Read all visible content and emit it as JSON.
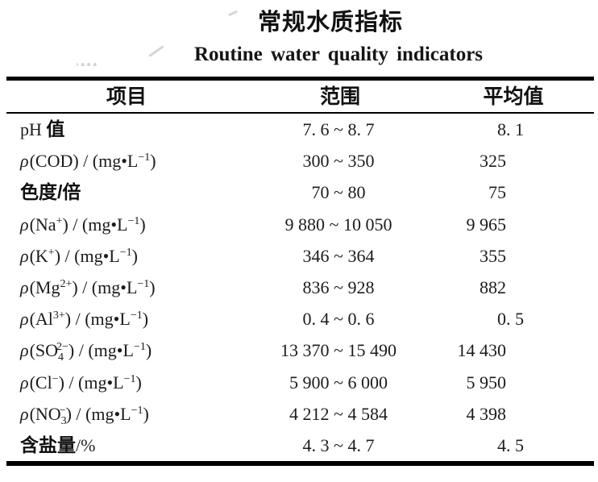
{
  "page": {
    "title_zh": "常规水质指标",
    "title_en": "Routine water quality indicators"
  },
  "table": {
    "columns": [
      "项目",
      "范围",
      "平均值"
    ],
    "rows": [
      {
        "item": "pH 值",
        "item_segments": [
          {
            "t": "pH ",
            "s": "serif"
          },
          {
            "t": "值",
            "s": "zh"
          }
        ],
        "range": "7. 6 ~ 8. 7",
        "avg": "8. 1"
      },
      {
        "item": "ρ(COD) / (mg•L−1)",
        "item_segments": [
          {
            "t": "ρ",
            "s": "rho"
          },
          {
            "t": "(COD) / (mg•L",
            "s": "serif"
          },
          {
            "t": "−1",
            "s": "sup"
          },
          {
            "t": ")",
            "s": "serif"
          }
        ],
        "range": "300 ~ 350",
        "avg": "325"
      },
      {
        "item": "色度/倍",
        "item_segments": [
          {
            "t": "色度/倍",
            "s": "zh"
          }
        ],
        "range": "70 ~ 80",
        "avg": "75"
      },
      {
        "item": "ρ(Na+) / (mg•L−1)",
        "item_segments": [
          {
            "t": "ρ",
            "s": "rho"
          },
          {
            "t": "(Na",
            "s": "serif"
          },
          {
            "t": "+",
            "s": "sup"
          },
          {
            "t": ") / (mg•L",
            "s": "serif"
          },
          {
            "t": "−1",
            "s": "sup"
          },
          {
            "t": ")",
            "s": "serif"
          }
        ],
        "range": "9 880 ~ 10 050",
        "avg": "9 965"
      },
      {
        "item": "ρ(K+) / (mg•L−1)",
        "item_segments": [
          {
            "t": "ρ",
            "s": "rho"
          },
          {
            "t": "(K",
            "s": "serif"
          },
          {
            "t": "+",
            "s": "sup"
          },
          {
            "t": ") / (mg•L",
            "s": "serif"
          },
          {
            "t": "−1",
            "s": "sup"
          },
          {
            "t": ")",
            "s": "serif"
          }
        ],
        "range": "346 ~ 364",
        "avg": "355"
      },
      {
        "item": "ρ(Mg2+) / (mg•L−1)",
        "item_segments": [
          {
            "t": "ρ",
            "s": "rho"
          },
          {
            "t": "(Mg",
            "s": "serif"
          },
          {
            "t": "2+",
            "s": "sup"
          },
          {
            "t": ") / (mg•L",
            "s": "serif"
          },
          {
            "t": "−1",
            "s": "sup"
          },
          {
            "t": ")",
            "s": "serif"
          }
        ],
        "range": "836 ~ 928",
        "avg": "882"
      },
      {
        "item": "ρ(Al3+) / (mg•L−1)",
        "item_segments": [
          {
            "t": "ρ",
            "s": "rho"
          },
          {
            "t": "(Al",
            "s": "serif"
          },
          {
            "t": "3+",
            "s": "sup"
          },
          {
            "t": ") / (mg•L",
            "s": "serif"
          },
          {
            "t": "−1",
            "s": "sup"
          },
          {
            "t": ")",
            "s": "serif"
          }
        ],
        "range": "0. 4 ~ 0. 6",
        "avg": "0. 5"
      },
      {
        "item": "ρ(SO42−) / (mg•L−1)",
        "item_segments": [
          {
            "t": "ρ",
            "s": "rho"
          },
          {
            "t": "(SO",
            "s": "serif"
          },
          {
            "t": "4",
            "s": "sub"
          },
          {
            "t": "2−",
            "s": "sup"
          },
          {
            "t": ") / (mg•L",
            "s": "serif"
          },
          {
            "t": "−1",
            "s": "sup"
          },
          {
            "t": ")",
            "s": "serif"
          }
        ],
        "range": "13 370 ~ 15 490",
        "avg": "14 430"
      },
      {
        "item": "ρ(Cl−) / (mg•L−1)",
        "item_segments": [
          {
            "t": "ρ",
            "s": "rho"
          },
          {
            "t": "(Cl",
            "s": "serif"
          },
          {
            "t": "−",
            "s": "sup"
          },
          {
            "t": ") / (mg•L",
            "s": "serif"
          },
          {
            "t": "−1",
            "s": "sup"
          },
          {
            "t": ")",
            "s": "serif"
          }
        ],
        "range": "5 900 ~ 6 000",
        "avg": "5 950"
      },
      {
        "item": "ρ(NO3−) / (mg•L−1)",
        "item_segments": [
          {
            "t": "ρ",
            "s": "rho"
          },
          {
            "t": "(NO",
            "s": "serif"
          },
          {
            "t": "3",
            "s": "sub"
          },
          {
            "t": "−",
            "s": "sup"
          },
          {
            "t": ") / (mg•L",
            "s": "serif"
          },
          {
            "t": "−1",
            "s": "sup"
          },
          {
            "t": ")",
            "s": "serif"
          }
        ],
        "range": "4 212 ~ 4 584",
        "avg": "4 398"
      },
      {
        "item": "含盐量/%",
        "item_segments": [
          {
            "t": "含盐量",
            "s": "zh"
          },
          {
            "t": "/%",
            "s": "serif"
          }
        ],
        "range": "4. 3 ~ 4. 7",
        "avg": "4. 5"
      }
    ]
  }
}
